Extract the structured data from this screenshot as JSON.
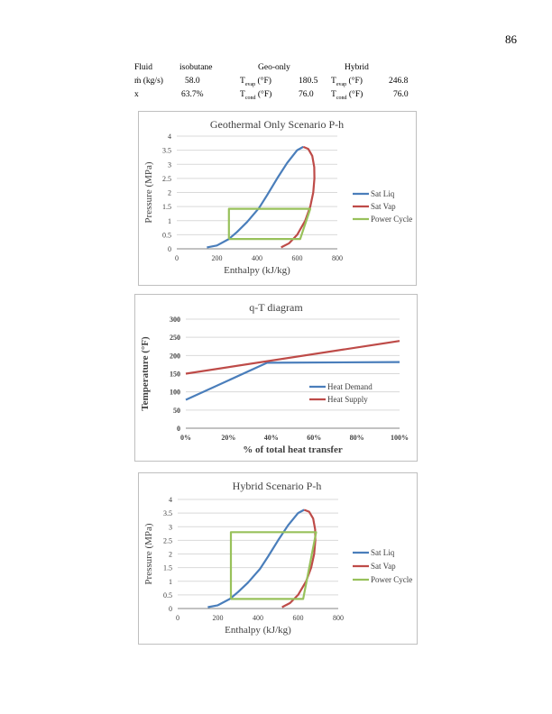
{
  "page_number": "86",
  "table": {
    "r1": {
      "c1": "Fluid",
      "c2": "isobutane",
      "c3": "Geo-only",
      "c4": "Hybrid"
    },
    "r2": {
      "c1": "ṁ (kg/s)",
      "c2": "58.0",
      "geo_label": "T",
      "geo_sub": "evap",
      "geo_unit": " (°F)",
      "geo_val": "180.5",
      "hyb_label": "T",
      "hyb_sub": "evap",
      "hyb_unit": " (°F)",
      "hyb_val": "246.8"
    },
    "r3": {
      "c1": "x",
      "c2": "63.7%",
      "geo_label": "T",
      "geo_sub": "cond",
      "geo_unit": " (°F)",
      "geo_val": "76.0",
      "hyb_label": "T",
      "hyb_sub": "cond",
      "hyb_unit": " (°F)",
      "hyb_val": "76.0"
    }
  },
  "colors": {
    "blue": "#4a7ebb",
    "red": "#be4b48",
    "green": "#98c15b"
  },
  "chart_data": [
    {
      "type": "line",
      "title": "Geothermal Only Scenario P-h",
      "xlabel": "Enthalpy (kJ/kg)",
      "ylabel": "Pressure (MPa)",
      "xlim": [
        0,
        800
      ],
      "ylim": [
        0,
        4
      ],
      "xticks": [
        "0",
        "200",
        "400",
        "600",
        "800"
      ],
      "yticks": [
        "0",
        "0.5",
        "1",
        "1.5",
        "2",
        "2.5",
        "3",
        "3.5",
        "4"
      ],
      "grid": true,
      "legend": "right",
      "series": [
        {
          "name": "Sat Liq",
          "color": "#4a7ebb",
          "x": [
            150,
            200,
            260,
            300,
            350,
            410,
            450,
            500,
            550,
            600,
            630
          ],
          "y": [
            0.05,
            0.12,
            0.35,
            0.6,
            0.95,
            1.45,
            1.9,
            2.5,
            3.05,
            3.5,
            3.62
          ]
        },
        {
          "name": "Sat Vap",
          "color": "#be4b48",
          "x": [
            520,
            560,
            600,
            640,
            665,
            680,
            686,
            685,
            675,
            655,
            630
          ],
          "y": [
            0.05,
            0.2,
            0.5,
            1.0,
            1.5,
            2.0,
            2.5,
            2.9,
            3.3,
            3.55,
            3.62
          ]
        },
        {
          "name": "Power Cycle",
          "color": "#98c15b",
          "x": [
            260,
            260,
            665,
            615,
            260
          ],
          "y": [
            0.35,
            1.42,
            1.42,
            0.35,
            0.35
          ]
        }
      ]
    },
    {
      "type": "line",
      "title": "q-T diagram",
      "xlabel": "% of total heat transfer",
      "ylabel": "Temperature (°F)",
      "xlim": [
        0,
        100
      ],
      "ylim": [
        0,
        300
      ],
      "xticks": [
        "0%",
        "20%",
        "40%",
        "60%",
        "80%",
        "100%"
      ],
      "yticks": [
        "0",
        "50",
        "100",
        "150",
        "200",
        "250",
        "300"
      ],
      "grid": true,
      "legend": "center-right",
      "series": [
        {
          "name": "Heat Demand",
          "color": "#4a7ebb",
          "x": [
            0,
            38,
            100
          ],
          "y": [
            78,
            180,
            182
          ]
        },
        {
          "name": "Heat Supply",
          "color": "#be4b48",
          "x": [
            0,
            100
          ],
          "y": [
            150,
            240
          ]
        }
      ]
    },
    {
      "type": "line",
      "title": "Hybrid Scenario P-h",
      "xlabel": "Enthalpy (kJ/kg)",
      "ylabel": "Pressure (MPa)",
      "xlim": [
        0,
        800
      ],
      "ylim": [
        0,
        4
      ],
      "xticks": [
        "0",
        "200",
        "400",
        "600",
        "800"
      ],
      "yticks": [
        "0",
        "0.5",
        "1",
        "1.5",
        "2",
        "2.5",
        "3",
        "3.5",
        "4"
      ],
      "grid": true,
      "legend": "right",
      "series": [
        {
          "name": "Sat Liq",
          "color": "#4a7ebb",
          "x": [
            150,
            200,
            260,
            300,
            350,
            410,
            450,
            500,
            550,
            600,
            630
          ],
          "y": [
            0.05,
            0.12,
            0.35,
            0.6,
            0.95,
            1.45,
            1.9,
            2.5,
            3.05,
            3.5,
            3.62
          ]
        },
        {
          "name": "Sat Vap",
          "color": "#be4b48",
          "x": [
            520,
            560,
            600,
            640,
            665,
            680,
            686,
            685,
            675,
            655,
            630
          ],
          "y": [
            0.05,
            0.2,
            0.5,
            1.0,
            1.5,
            2.0,
            2.5,
            2.9,
            3.3,
            3.55,
            3.62
          ]
        },
        {
          "name": "Power Cycle",
          "color": "#98c15b",
          "x": [
            265,
            265,
            690,
            625,
            265
          ],
          "y": [
            0.35,
            2.8,
            2.8,
            0.35,
            0.35
          ]
        }
      ]
    }
  ]
}
